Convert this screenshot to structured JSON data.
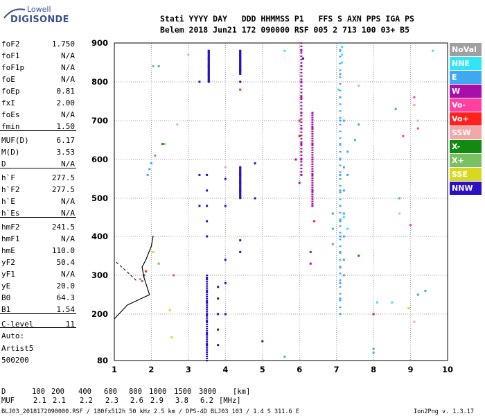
{
  "logo": {
    "top": "Lowell",
    "main": "DIGISONDE"
  },
  "header": {
    "line1": "Stati YYYY DAY   DDD HHMMSS P1   FFS S AXN PPS IGA PS",
    "line2": "Belem 2018 Jun21 172 090000 RSF 005 2 713 100 03+ B5"
  },
  "params": [
    {
      "name": "foF2",
      "value": "1.750"
    },
    {
      "name": "foF1",
      "value": "N/A"
    },
    {
      "name": "foF1p",
      "value": "N/A"
    },
    {
      "name": "foE",
      "value": "N/A"
    },
    {
      "name": "foEp",
      "value": "0.81"
    },
    {
      "name": "fxI",
      "value": "2.00"
    },
    {
      "name": "foEs",
      "value": "N/A"
    },
    {
      "name": "fmin",
      "value": "1.50"
    },
    {
      "name": "MUF(D)",
      "value": "6.17"
    },
    {
      "name": "M(D)",
      "value": "3.53"
    },
    {
      "name": "D",
      "value": "N/A"
    },
    {
      "name": "h`F",
      "value": "277.5"
    },
    {
      "name": "h`F2",
      "value": "277.5"
    },
    {
      "name": "h`E",
      "value": "N/A"
    },
    {
      "name": "h`Es",
      "value": "N/A"
    },
    {
      "name": "hmF2",
      "value": "241.5"
    },
    {
      "name": "hmF1",
      "value": "N/A"
    },
    {
      "name": "hmE",
      "value": "110.0"
    },
    {
      "name": "yF2",
      "value": "50.4"
    },
    {
      "name": "yF1",
      "value": "N/A"
    },
    {
      "name": "yE",
      "value": "20.0"
    },
    {
      "name": "B0",
      "value": "64.3"
    },
    {
      "name": "B1",
      "value": "1.54"
    },
    {
      "name": "C-level",
      "value": "11"
    }
  ],
  "auto": {
    "l1": "Auto:",
    "l2": "Artist5",
    "l3": "500200"
  },
  "legend": [
    {
      "label": "NoVal",
      "color": "#a0a0a0"
    },
    {
      "label": "NNE",
      "color": "#30e6f5"
    },
    {
      "label": "E",
      "color": "#40a8f0"
    },
    {
      "label": "W",
      "color": "#a80fa8"
    },
    {
      "label": "Vo-",
      "color": "#ff40a0"
    },
    {
      "label": "Vo+",
      "color": "#ff2020"
    },
    {
      "label": "SSW",
      "color": "#f2a8a8"
    },
    {
      "label": "X-",
      "color": "#128a12"
    },
    {
      "label": "X+",
      "color": "#78c060"
    },
    {
      "label": "SSE",
      "color": "#d8d820"
    },
    {
      "label": "NNW",
      "color": "#2c10c8"
    }
  ],
  "muf_table": {
    "d_label": "D",
    "d_values": [
      "100",
      "200",
      "400",
      "600",
      "800",
      "1000",
      "1500",
      "3000"
    ],
    "d_unit": "[km]",
    "muf_label": "MUF",
    "muf_values": [
      "2.1",
      "2.1",
      "2.2",
      "2.3",
      "2.6",
      "2.9",
      "3.8",
      "6.2"
    ],
    "muf_unit": "[MHz]"
  },
  "footer": {
    "left": "BLJ03_2018172090000.RSF / 180fx512h 50 kHz 2.5 km / DPS-4D BLJ03 103 / 1.4 S 311.6 E",
    "right": "Ion2Png v. 1.3.17"
  },
  "chart_data": {
    "type": "scatter",
    "title": "",
    "xlabel": "",
    "ylabel": "",
    "xlim": [
      1,
      10
    ],
    "ylim": [
      80,
      900
    ],
    "xticks": [
      1,
      2,
      3,
      4,
      5,
      6,
      7,
      8,
      9,
      10
    ],
    "yticks": [
      80,
      200,
      300,
      400,
      500,
      600,
      700,
      800,
      900
    ],
    "grid": true,
    "legend_position": "right",
    "series": [
      {
        "name": "NNW",
        "color_key": "NNW",
        "points": [
          [
            3.5,
            120
          ],
          [
            3.5,
            150
          ],
          [
            3.5,
            180
          ],
          [
            3.5,
            200
          ],
          [
            3.5,
            230
          ],
          [
            3.5,
            260
          ],
          [
            3.5,
            290
          ],
          [
            3.5,
            400
          ],
          [
            3.5,
            440
          ],
          [
            3.5,
            480
          ],
          [
            3.5,
            520
          ],
          [
            3.5,
            560
          ],
          [
            3.55,
            800
          ],
          [
            3.55,
            820
          ],
          [
            3.55,
            840
          ],
          [
            3.55,
            860
          ],
          [
            3.55,
            880
          ],
          [
            3.8,
            120
          ],
          [
            3.8,
            160
          ],
          [
            3.8,
            200
          ],
          [
            3.8,
            240
          ],
          [
            3.8,
            270
          ],
          [
            4.0,
            200
          ],
          [
            4.0,
            280
          ],
          [
            4.0,
            340
          ],
          [
            4.0,
            480
          ],
          [
            4.0,
            550
          ],
          [
            4.4,
            520
          ],
          [
            4.4,
            540
          ],
          [
            4.4,
            560
          ],
          [
            4.4,
            580
          ],
          [
            4.4,
            360
          ],
          [
            4.4,
            390
          ],
          [
            4.4,
            800
          ],
          [
            4.4,
            830
          ],
          [
            4.4,
            860
          ],
          [
            4.4,
            880
          ],
          [
            4.8,
            500
          ],
          [
            4.8,
            590
          ],
          [
            5.0,
            130
          ],
          [
            3.3,
            480
          ],
          [
            3.3,
            560
          ],
          [
            3.3,
            800
          ],
          [
            6.1,
            860
          ]
        ]
      },
      {
        "name": "E",
        "color_key": "E",
        "points": [
          [
            7.1,
            200
          ],
          [
            7.1,
            240
          ],
          [
            7.1,
            280
          ],
          [
            7.1,
            320
          ],
          [
            7.1,
            360
          ],
          [
            7.1,
            400
          ],
          [
            7.1,
            440
          ],
          [
            7.1,
            480
          ],
          [
            7.1,
            520
          ],
          [
            7.1,
            560
          ],
          [
            7.1,
            600
          ],
          [
            7.1,
            640
          ],
          [
            7.1,
            700
          ],
          [
            7.1,
            760
          ],
          [
            7.1,
            820
          ],
          [
            7.1,
            880
          ],
          [
            7.1,
            900
          ],
          [
            7.2,
            300
          ],
          [
            7.2,
            340
          ],
          [
            7.2,
            400
          ],
          [
            7.2,
            460
          ],
          [
            7.2,
            520
          ],
          [
            7.2,
            580
          ],
          [
            7.2,
            700
          ],
          [
            6.9,
            380
          ],
          [
            6.9,
            420
          ],
          [
            6.9,
            460
          ],
          [
            7.3,
            560
          ],
          [
            7.3,
            620
          ],
          [
            7.5,
            650
          ],
          [
            7.6,
            690
          ],
          [
            8.0,
            100
          ],
          [
            8.0,
            110
          ],
          [
            8.6,
            730
          ],
          [
            8.7,
            500
          ],
          [
            9.2,
            250
          ],
          [
            9.4,
            260
          ],
          [
            5.6,
            90
          ],
          [
            2.2,
            840
          ],
          [
            1.9,
            560
          ],
          [
            1.95,
            575
          ],
          [
            2.0,
            590
          ],
          [
            2.1,
            610
          ]
        ]
      },
      {
        "name": "W",
        "color_key": "W",
        "points": [
          [
            6.05,
            560
          ],
          [
            6.05,
            600
          ],
          [
            6.05,
            640
          ],
          [
            6.05,
            680
          ],
          [
            6.05,
            720
          ],
          [
            6.05,
            760
          ],
          [
            6.05,
            800
          ],
          [
            6.05,
            840
          ],
          [
            6.05,
            880
          ],
          [
            6.35,
            480
          ],
          [
            6.35,
            520
          ],
          [
            6.35,
            560
          ],
          [
            6.35,
            600
          ],
          [
            6.35,
            640
          ],
          [
            6.35,
            680
          ],
          [
            6.35,
            720
          ],
          [
            6.3,
            330
          ],
          [
            6.3,
            360
          ],
          [
            6.0,
            540
          ],
          [
            5.9,
            600
          ]
        ]
      },
      {
        "name": "NNE",
        "color_key": "NNE",
        "points": [
          [
            7.15,
            850
          ],
          [
            7.15,
            870
          ],
          [
            7.15,
            890
          ],
          [
            7.05,
            780
          ],
          [
            7.2,
            450
          ],
          [
            7.3,
            420
          ],
          [
            8.1,
            230
          ],
          [
            8.5,
            230
          ],
          [
            5.6,
            880
          ],
          [
            9.6,
            880
          ]
        ]
      },
      {
        "name": "Vo-",
        "color_key": "Vo-",
        "points": [
          [
            9.1,
            760
          ],
          [
            9.1,
            740
          ],
          [
            9.2,
            680
          ],
          [
            8.8,
            660
          ],
          [
            9.0,
            430
          ],
          [
            1.8,
            300
          ],
          [
            1.75,
            285
          ],
          [
            2.6,
            300
          ]
        ]
      },
      {
        "name": "Vo+",
        "color_key": "Vo+",
        "points": [
          [
            6.0,
            660
          ],
          [
            6.0,
            700
          ],
          [
            4.4,
            780
          ],
          [
            6.4,
            440
          ],
          [
            8.0,
            200
          ],
          [
            1.85,
            310
          ]
        ]
      },
      {
        "name": "SSW",
        "color_key": "SSW",
        "points": [
          [
            9.1,
            740
          ],
          [
            9.2,
            700
          ],
          [
            8.7,
            460
          ],
          [
            9.1,
            180
          ],
          [
            4.0,
            580
          ],
          [
            3.0,
            870
          ],
          [
            2.7,
            690
          ],
          [
            7.6,
            790
          ]
        ]
      },
      {
        "name": "X-",
        "color_key": "X-",
        "points": [
          [
            7.6,
            350
          ],
          [
            2.3,
            640
          ],
          [
            1.8,
            300
          ]
        ]
      },
      {
        "name": "X+",
        "color_key": "X+",
        "points": [
          [
            2.35,
            640
          ],
          [
            2.05,
            840
          ],
          [
            2.2,
            330
          ],
          [
            1.7,
            290
          ]
        ]
      },
      {
        "name": "SSE",
        "color_key": "SSE",
        "points": [
          [
            8.95,
            215
          ],
          [
            2.05,
            360
          ],
          [
            2.55,
            140
          ],
          [
            2.5,
            210
          ]
        ]
      }
    ]
  }
}
